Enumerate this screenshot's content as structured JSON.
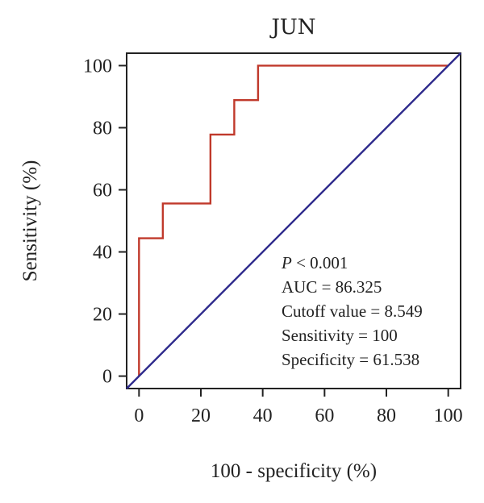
{
  "chart_data": {
    "type": "line",
    "title": "JUN",
    "xlabel": "100 - specificity (%)",
    "ylabel": "Sensitivity (%)",
    "xlim": [
      -4,
      104
    ],
    "ylim": [
      -4,
      104
    ],
    "xticks": [
      "0",
      "20",
      "40",
      "60",
      "80",
      "100"
    ],
    "yticks": [
      "0",
      "20",
      "40",
      "60",
      "80",
      "100"
    ],
    "grid": false,
    "series": [
      {
        "color": "#c0392b",
        "x": [
          0,
          0,
          7.7,
          7.7,
          23.1,
          23.1,
          30.8,
          30.8,
          38.5,
          38.5,
          100
        ],
        "y": [
          0,
          44.4,
          44.4,
          55.6,
          55.6,
          77.8,
          77.8,
          88.9,
          88.9,
          100,
          100
        ]
      },
      {
        "color": "#2e2a8c",
        "x": [
          -4,
          104
        ],
        "y": [
          -4,
          104
        ]
      }
    ],
    "annotations": {
      "p_symbol": "P",
      "p_text": " < 0.001",
      "auc": "AUC = 86.325",
      "cutoff": "Cutoff value = 8.549",
      "sensitivity": "Sensitivity = 100",
      "specificity": "Specificity = 61.538"
    }
  }
}
